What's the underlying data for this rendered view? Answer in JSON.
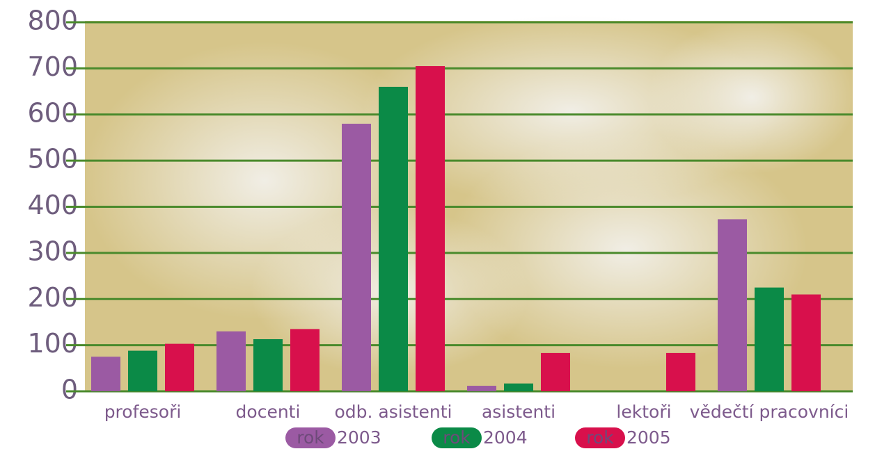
{
  "chart_data": {
    "type": "bar",
    "categories": [
      "profesoři",
      "docenti",
      "odb. asistenti",
      "asistenti",
      "lektoři",
      "vědečtí pracovníci"
    ],
    "legend_prefix": "rok",
    "series": [
      {
        "name": "2003",
        "color": "#9b5aa3",
        "values": [
          75,
          130,
          580,
          12,
          null,
          373
        ]
      },
      {
        "name": "2004",
        "color": "#0b8a47",
        "values": [
          88,
          113,
          660,
          17,
          null,
          225
        ]
      },
      {
        "name": "2005",
        "color": "#d8104c",
        "values": [
          103,
          135,
          705,
          83,
          83,
          210
        ]
      }
    ],
    "ylim": [
      0,
      800
    ],
    "yticks": [
      0,
      100,
      200,
      300,
      400,
      500,
      600,
      700,
      800
    ],
    "grid": true
  }
}
